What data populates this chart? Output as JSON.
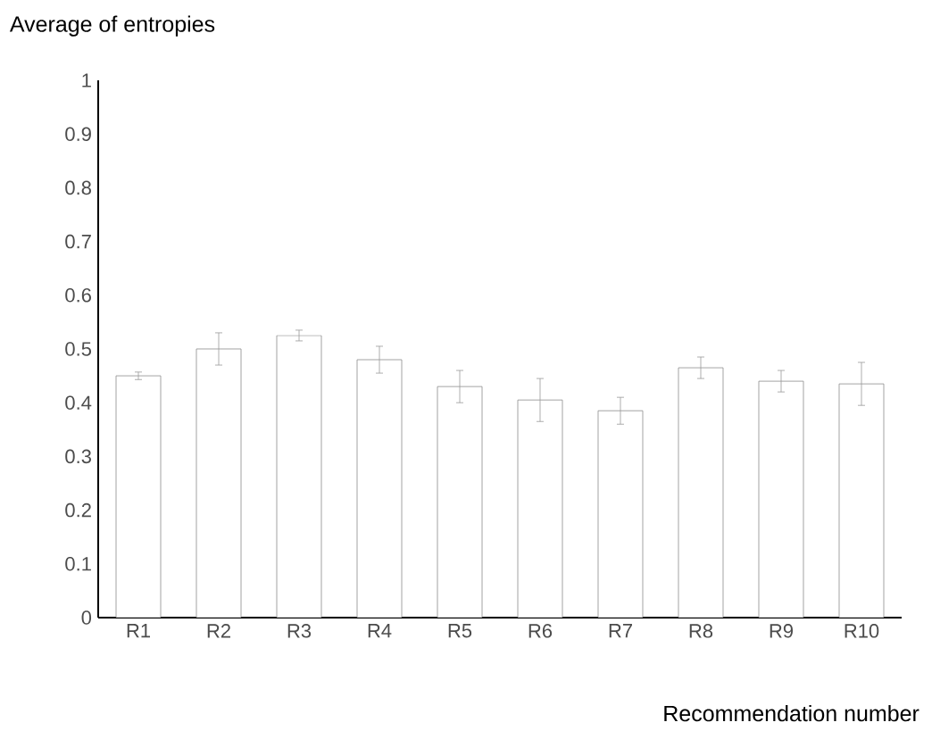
{
  "chart_data": {
    "type": "bar",
    "ylabel": "Average of entropies",
    "xlabel": "Recommendation number",
    "categories": [
      "R1",
      "R2",
      "R3",
      "R4",
      "R5",
      "R6",
      "R7",
      "R8",
      "R9",
      "R10"
    ],
    "values": [
      0.45,
      0.5,
      0.525,
      0.48,
      0.43,
      0.405,
      0.385,
      0.465,
      0.44,
      0.435
    ],
    "errors": [
      0.007,
      0.03,
      0.01,
      0.025,
      0.03,
      0.04,
      0.025,
      0.02,
      0.02,
      0.04
    ],
    "color": "#ffffff",
    "ylim": [
      0,
      1
    ],
    "yticks": [
      0,
      0.1,
      0.2,
      0.3,
      0.4,
      0.5,
      0.6,
      0.7,
      0.8,
      0.9,
      1
    ],
    "grid": false
  }
}
